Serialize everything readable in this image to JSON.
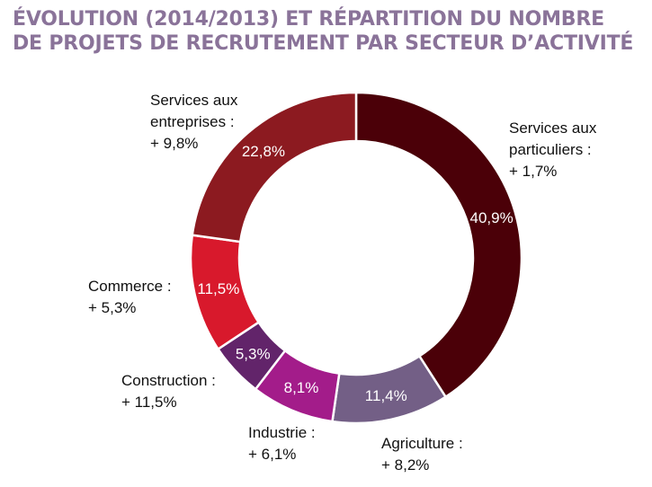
{
  "title": {
    "line1": "ÉVOLUTION (2014/2013) ET RÉPARTITION DU NOMBRE",
    "line2": "DE PROJETS DE RECRUTEMENT PAR SECTEUR D’ACTIVITÉ"
  },
  "chart_data": {
    "type": "pie",
    "variant": "donut",
    "categories": [
      "Services aux particuliers",
      "Agriculture",
      "Industrie",
      "Construction",
      "Commerce",
      "Services aux entreprises"
    ],
    "values": [
      40.9,
      11.4,
      8.1,
      5.3,
      11.5,
      22.8
    ],
    "value_labels": [
      "40,9%",
      "11,4%",
      "8,1%",
      "5,3%",
      "11,5%",
      "22,8%"
    ],
    "colors": [
      "#4b0008",
      "#735f86",
      "#a31c8a",
      "#62246a",
      "#d8192c",
      "#8c1a20"
    ],
    "labels": [
      {
        "line1": "Services aux",
        "line2": "particuliers :",
        "line3": "+ 1,7%"
      },
      {
        "line1": "Agriculture :",
        "line2": "+ 8,2%"
      },
      {
        "line1": "Industrie :",
        "line2": "+ 6,1%"
      },
      {
        "line1": "Construction :",
        "line2": "+ 11,5%"
      },
      {
        "line1": "Commerce :",
        "line2": "+ 5,3%"
      },
      {
        "line1": "Services aux",
        "line2": "entreprises :",
        "line3": "+ 9,8%"
      }
    ]
  }
}
